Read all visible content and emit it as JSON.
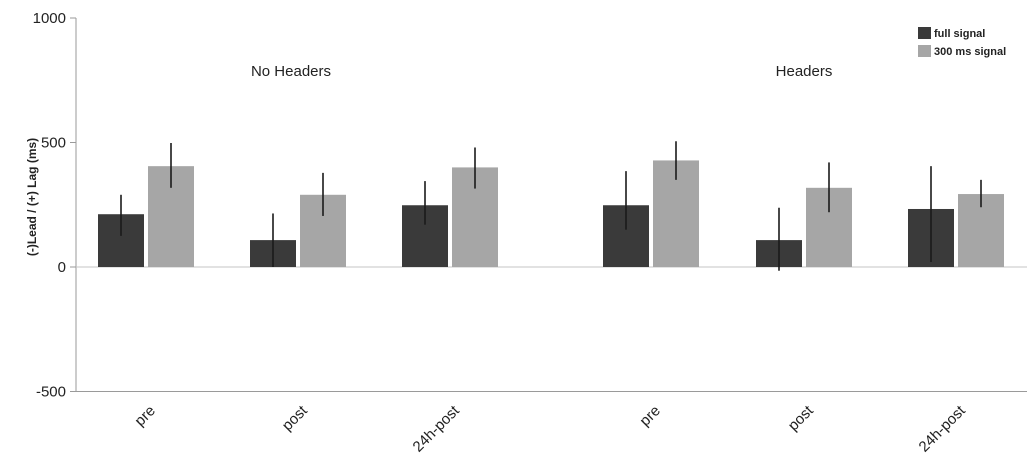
{
  "chart_data": {
    "type": "bar",
    "ylabel": "(-)Lead / (+) Lag (ms)",
    "ylim": [
      -500,
      1000
    ],
    "yticks": [
      1000,
      500,
      0,
      -500
    ],
    "ytick_labels": [
      "1000",
      "500",
      "0",
      "-500"
    ],
    "groups": [
      "No Headers",
      "Headers"
    ],
    "categories": [
      "pre",
      "post",
      "24h-post",
      "pre",
      "post",
      "24h-post"
    ],
    "series": [
      {
        "name": "full signal",
        "color": "#3a3a3a",
        "values": [
          212,
          108,
          248,
          248,
          108,
          233
        ],
        "err_low": [
          125,
          0,
          170,
          150,
          -15,
          20
        ],
        "err_high": [
          290,
          215,
          345,
          385,
          238,
          405
        ]
      },
      {
        "name": "300 ms signal",
        "color": "#a6a6a6",
        "values": [
          405,
          290,
          400,
          428,
          318,
          293
        ],
        "err_low": [
          318,
          205,
          315,
          350,
          220,
          240
        ],
        "err_high": [
          498,
          378,
          480,
          505,
          420,
          350
        ]
      }
    ],
    "legend_position": "top-right",
    "grid": false
  }
}
